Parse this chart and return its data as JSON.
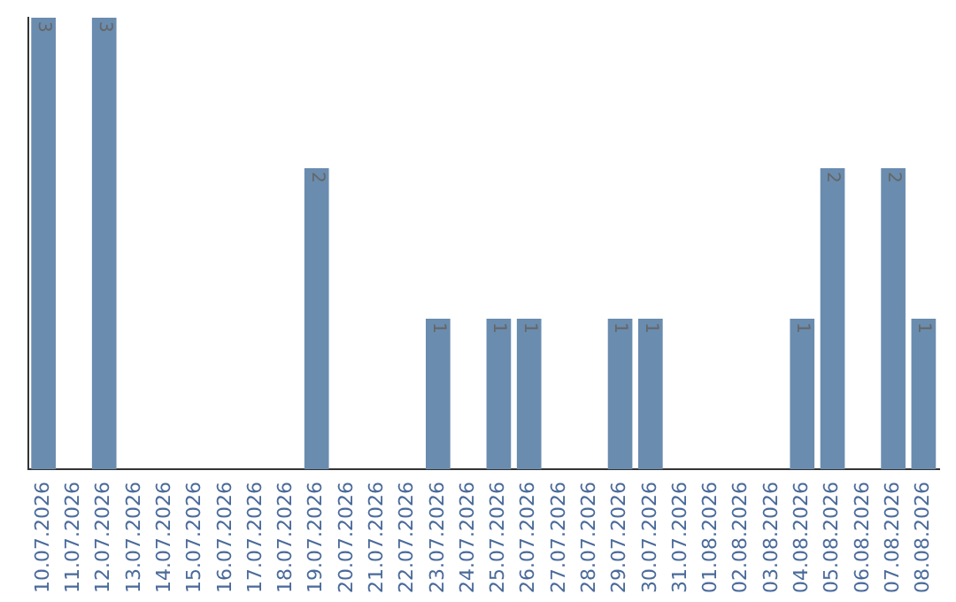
{
  "chart_data": {
    "type": "bar",
    "categories": [
      "10.07.2026",
      "11.07.2026",
      "12.07.2026",
      "13.07.2026",
      "14.07.2026",
      "15.07.2026",
      "16.07.2026",
      "17.07.2026",
      "18.07.2026",
      "19.07.2026",
      "20.07.2026",
      "21.07.2026",
      "22.07.2026",
      "23.07.2026",
      "24.07.2026",
      "25.07.2026",
      "26.07.2026",
      "27.07.2026",
      "28.07.2026",
      "29.07.2026",
      "30.07.2026",
      "31.07.2026",
      "01.08.2026",
      "02.08.2026",
      "03.08.2026",
      "04.08.2026",
      "05.08.2026",
      "06.08.2026",
      "07.08.2026",
      "08.08.2026"
    ],
    "values": [
      3,
      0,
      3,
      0,
      0,
      0,
      0,
      0,
      0,
      2,
      0,
      0,
      0,
      1,
      0,
      1,
      1,
      0,
      0,
      1,
      1,
      0,
      0,
      0,
      0,
      1,
      2,
      0,
      2,
      1
    ],
    "value_labels": [
      "3",
      null,
      "3",
      null,
      null,
      null,
      null,
      null,
      null,
      "2",
      null,
      null,
      null,
      "1",
      null,
      "1",
      "1",
      null,
      null,
      "1",
      "1",
      null,
      null,
      null,
      null,
      "1",
      "2",
      null,
      "2",
      "1"
    ],
    "color": "#6a8caf",
    "grid": false,
    "legend": false,
    "tick_labels": "x"
  }
}
